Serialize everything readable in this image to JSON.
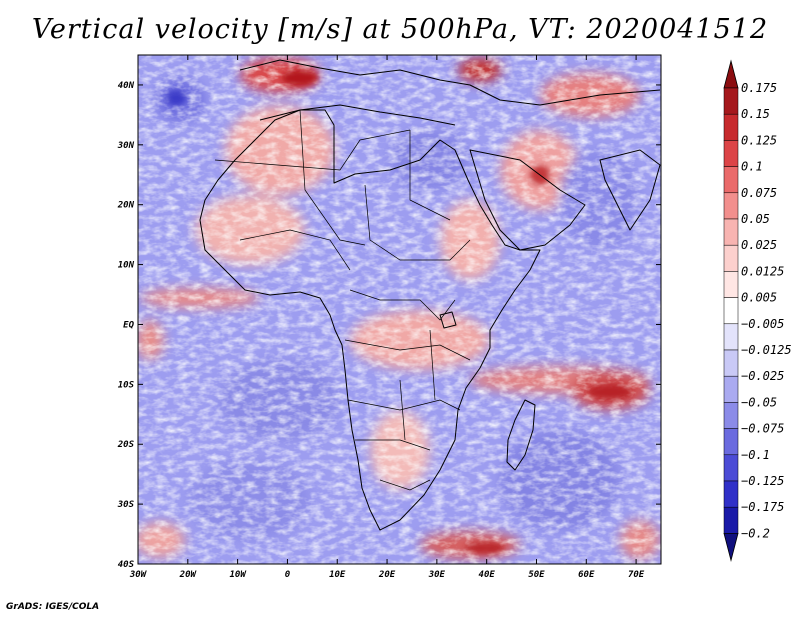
{
  "title": "Vertical velocity [m/s] at 500hPa, VT: 2020041512",
  "credit": "GrADS: IGES/COLA",
  "map": {
    "variable": "Vertical velocity",
    "units": "m/s",
    "level": "500hPa",
    "valid_time": "2020041512",
    "lon_range": [
      -30,
      75
    ],
    "lat_range": [
      -40,
      45
    ],
    "lat_labels": [
      "40N",
      "30N",
      "20N",
      "10N",
      "EQ",
      "10S",
      "20S",
      "30S",
      "40S"
    ],
    "lat_values": [
      40,
      30,
      20,
      10,
      0,
      -10,
      -20,
      -30,
      -40
    ],
    "lon_labels": [
      "30W",
      "20W",
      "10W",
      "0",
      "10E",
      "20E",
      "30E",
      "40E",
      "50E",
      "60E",
      "70E"
    ],
    "lon_values": [
      -30,
      -20,
      -10,
      0,
      10,
      20,
      30,
      40,
      50,
      60,
      70
    ],
    "positive_color": "#c0282a",
    "negative_color": "#5252dd"
  },
  "colorbar": {
    "labels": [
      "0.175",
      "0.15",
      "0.125",
      "0.1",
      "0.075",
      "0.05",
      "0.025",
      "0.0125",
      "0.005",
      "−0.005",
      "−0.0125",
      "−0.025",
      "−0.05",
      "−0.075",
      "−0.1",
      "−0.125",
      "−0.175",
      "−0.2"
    ],
    "colors": [
      "#a5181c",
      "#c72a2d",
      "#dc4447",
      "#ea6a6a",
      "#f28f8d",
      "#f8b4b1",
      "#fcd0cd",
      "#ffe6e4",
      "#ffffff",
      "#e3e3fb",
      "#c9c9f6",
      "#aaaaf0",
      "#8b8be8",
      "#6b6bdf",
      "#4c4cd6",
      "#3030c8",
      "#1a1aa8"
    ],
    "max_arrow_color": "#8b0d10",
    "min_arrow_color": "#10107e"
  }
}
